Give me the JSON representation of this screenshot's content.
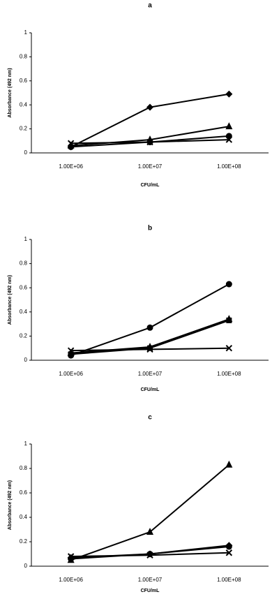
{
  "chart_data": [
    {
      "type": "line",
      "title": "a",
      "xlabel": "CFU/mL",
      "ylabel": "Absorbance (492 nm)",
      "categories": [
        "1.00E+06",
        "1.00E+07",
        "1.00E+08"
      ],
      "ylim": [
        0,
        1
      ],
      "yticks": [
        0,
        0.2,
        0.4,
        0.6,
        0.8,
        1
      ],
      "series": [
        {
          "marker": "diamond",
          "color": "#000000",
          "values": [
            0.05,
            0.38,
            0.49
          ]
        },
        {
          "marker": "triangle",
          "color": "#000000",
          "values": [
            0.06,
            0.11,
            0.22
          ]
        },
        {
          "marker": "circle",
          "color": "#000000",
          "values": [
            0.05,
            0.09,
            0.14
          ]
        },
        {
          "marker": "x",
          "color": "#000000",
          "values": [
            0.08,
            0.09,
            0.11
          ]
        }
      ]
    },
    {
      "type": "line",
      "title": "b",
      "xlabel": "CFU/mL",
      "ylabel": "Absorbance (492 nm)",
      "categories": [
        "1.00E+06",
        "1.00E+07",
        "1.00E+08"
      ],
      "ylim": [
        0,
        1
      ],
      "yticks": [
        0,
        0.2,
        0.4,
        0.6,
        0.8,
        1
      ],
      "series": [
        {
          "marker": "circle",
          "color": "#000000",
          "values": [
            0.04,
            0.27,
            0.63
          ]
        },
        {
          "marker": "triangle",
          "color": "#000000",
          "values": [
            0.06,
            0.11,
            0.34
          ]
        },
        {
          "marker": "square",
          "color": "#000000",
          "values": [
            0.05,
            0.1,
            0.33
          ]
        },
        {
          "marker": "x",
          "color": "#000000",
          "values": [
            0.08,
            0.09,
            0.1
          ]
        }
      ]
    },
    {
      "type": "line",
      "title": "c",
      "xlabel": "CFU/mL",
      "ylabel": "Absorbance (492 nm)",
      "categories": [
        "1.00E+06",
        "1.00E+07",
        "1.00E+08"
      ],
      "ylim": [
        0,
        1
      ],
      "yticks": [
        0,
        0.2,
        0.4,
        0.6,
        0.8,
        1
      ],
      "series": [
        {
          "marker": "triangle",
          "color": "#000000",
          "values": [
            0.05,
            0.28,
            0.83
          ]
        },
        {
          "marker": "diamond",
          "color": "#000000",
          "values": [
            0.07,
            0.1,
            0.17
          ]
        },
        {
          "marker": "circle",
          "color": "#000000",
          "values": [
            0.06,
            0.1,
            0.16
          ]
        },
        {
          "marker": "x",
          "color": "#000000",
          "values": [
            0.08,
            0.09,
            0.11
          ]
        }
      ]
    }
  ]
}
